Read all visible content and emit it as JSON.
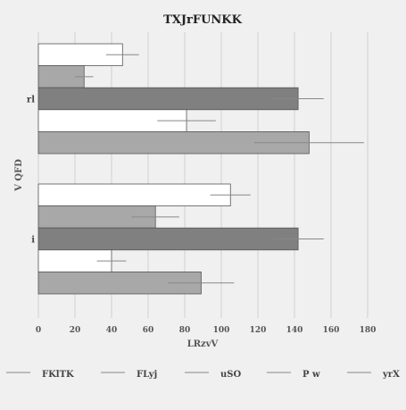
{
  "chart_data": {
    "type": "bar",
    "orientation": "horizontal",
    "title": "TXJrFUNKK",
    "xlabel": "LRzvV",
    "ylabel": "V QFD",
    "xlim": [
      0,
      180
    ],
    "x_ticks": [
      "0",
      "20",
      "40",
      "60",
      "80",
      "100",
      "120",
      "140",
      "160",
      "180"
    ],
    "categories": [
      "rl",
      "i"
    ],
    "grid": "vertical",
    "legend_position": "bottom",
    "series": [
      {
        "name": "FKlTK",
        "color": "#ffffff",
        "values": [
          46,
          105
        ],
        "errors": [
          9,
          11
        ]
      },
      {
        "name": "FLyj",
        "color": "#a8a8a8",
        "values": [
          25,
          64
        ],
        "errors": [
          5,
          13
        ]
      },
      {
        "name": "uSO",
        "color": "#808080",
        "values": [
          142,
          142
        ],
        "errors": [
          14,
          14
        ]
      },
      {
        "name": "P w",
        "color": "#ffffff",
        "values": [
          81,
          40
        ],
        "errors": [
          16,
          8
        ]
      },
      {
        "name": "yrX",
        "color": "#a8a8a8",
        "values": [
          148,
          89
        ],
        "errors": [
          30,
          18
        ]
      }
    ]
  }
}
